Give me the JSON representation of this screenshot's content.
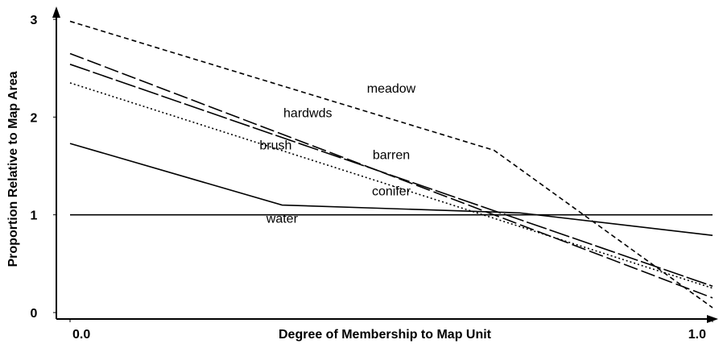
{
  "chart_data": {
    "type": "line",
    "xlabel": "Degree of Membership to Map Unit",
    "ylabel": "Proportion Relative to Map Area",
    "xlim": [
      0,
      1
    ],
    "ylim": [
      0,
      3
    ],
    "xticks": [
      {
        "value": 0,
        "label": "0.0"
      },
      {
        "value": 1,
        "label": "1.0"
      }
    ],
    "yticks": [
      0,
      1,
      2,
      3
    ],
    "series": [
      {
        "name": "meadow",
        "color": "#000000",
        "dash": "6,4",
        "x": [
          0,
          0.66,
          1
        ],
        "values": [
          2.98,
          1.66,
          0.05
        ]
      },
      {
        "name": "hardwds",
        "color": "#000000",
        "dash": "18,5",
        "x": [
          0,
          1
        ],
        "values": [
          2.65,
          0.15
        ]
      },
      {
        "name": "barren",
        "color": "#000000",
        "dash": "26,4",
        "x": [
          0,
          1
        ],
        "values": [
          2.54,
          0.27
        ]
      },
      {
        "name": "brush",
        "color": "#000000",
        "dash": "2,3",
        "x": [
          0,
          1
        ],
        "values": [
          2.35,
          0.25
        ]
      },
      {
        "name": "conifer",
        "color": "#000000",
        "dash": "",
        "x": [
          0,
          0.33,
          0.7,
          1
        ],
        "values": [
          1.73,
          1.1,
          1.02,
          0.79
        ]
      },
      {
        "name": "water",
        "color": "#000000",
        "dash": "",
        "x": [
          0,
          1
        ],
        "values": [
          1,
          1
        ]
      }
    ],
    "annotations": [
      {
        "text": "meadow",
        "x": 0.5,
        "y": 2.25
      },
      {
        "text": "hardwds",
        "x": 0.37,
        "y": 2.0
      },
      {
        "text": "brush",
        "x": 0.32,
        "y": 1.67
      },
      {
        "text": "barren",
        "x": 0.5,
        "y": 1.57
      },
      {
        "text": "conifer",
        "x": 0.5,
        "y": 1.2
      },
      {
        "text": "water",
        "x": 0.33,
        "y": 0.92
      }
    ]
  }
}
